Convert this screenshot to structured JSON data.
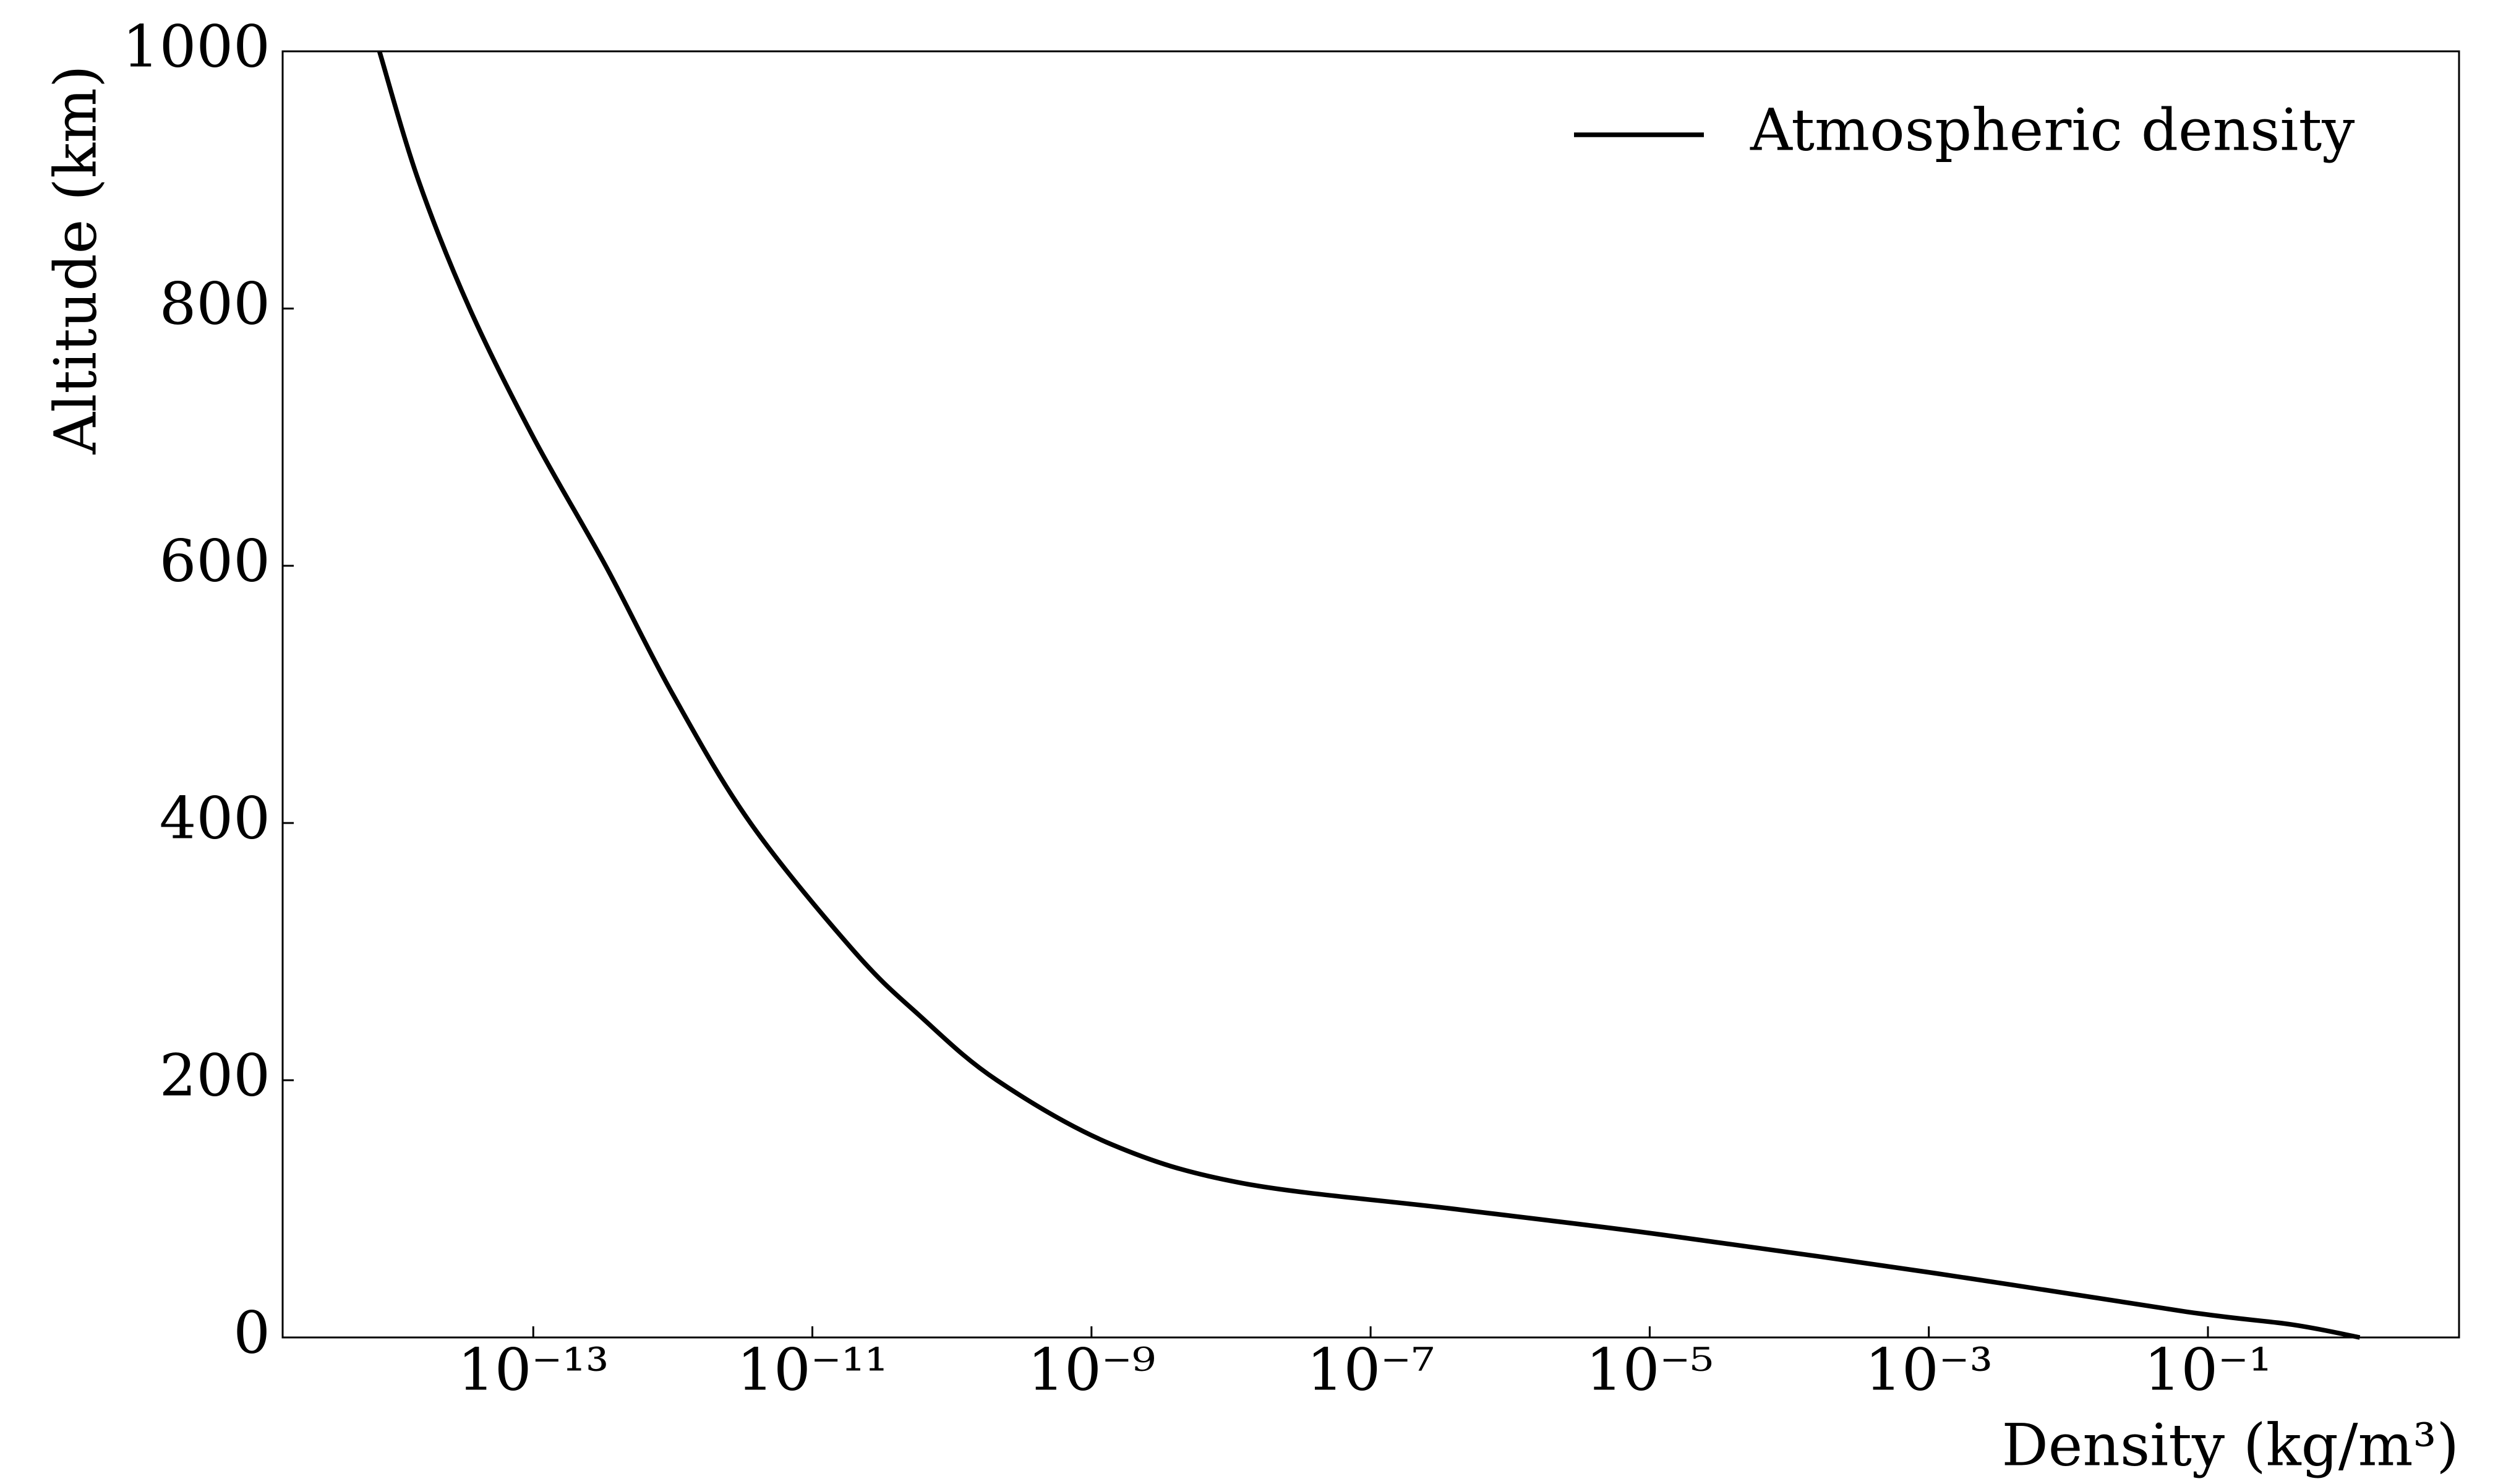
{
  "chart_data": {
    "type": "line",
    "x_label": "Density (kg/m³)",
    "y_label": "Altitude (km)",
    "x": [
      1.225,
      0.4,
      0.07,
      0.0011,
      1.2e-05,
      3.9e-07,
      1.2e-08,
      1.4e-09,
      2.1e-10,
      5.9e-11,
      2e-11,
      3.6e-12,
      1e-12,
      3.3e-13,
      1e-13,
      3.5e-14,
      1.5e-14,
      7.9e-15
    ],
    "series": [
      {
        "name": "Atmospheric density",
        "color": "#000000",
        "values": [
          0,
          10,
          20,
          50,
          80,
          100,
          120,
          150,
          200,
          250,
          300,
          400,
          500,
          600,
          700,
          800,
          900,
          1000
        ]
      }
    ],
    "x_log": true,
    "xlim": [
      1.6e-15,
      6.3
    ],
    "xticks": [
      {
        "value": 1e-13,
        "label": "10⁻¹³"
      },
      {
        "value": 1e-11,
        "label": "10⁻¹¹"
      },
      {
        "value": 1e-09,
        "label": "10⁻⁹"
      },
      {
        "value": 1e-07,
        "label": "10⁻⁷"
      },
      {
        "value": 1e-05,
        "label": "10⁻⁵"
      },
      {
        "value": 0.001,
        "label": "10⁻³"
      },
      {
        "value": 0.1,
        "label": "10⁻¹"
      }
    ],
    "ylim": [
      0,
      1000
    ],
    "yticks": [
      0,
      200,
      400,
      600,
      800,
      1000
    ],
    "grid": false,
    "legend": "upper right"
  }
}
